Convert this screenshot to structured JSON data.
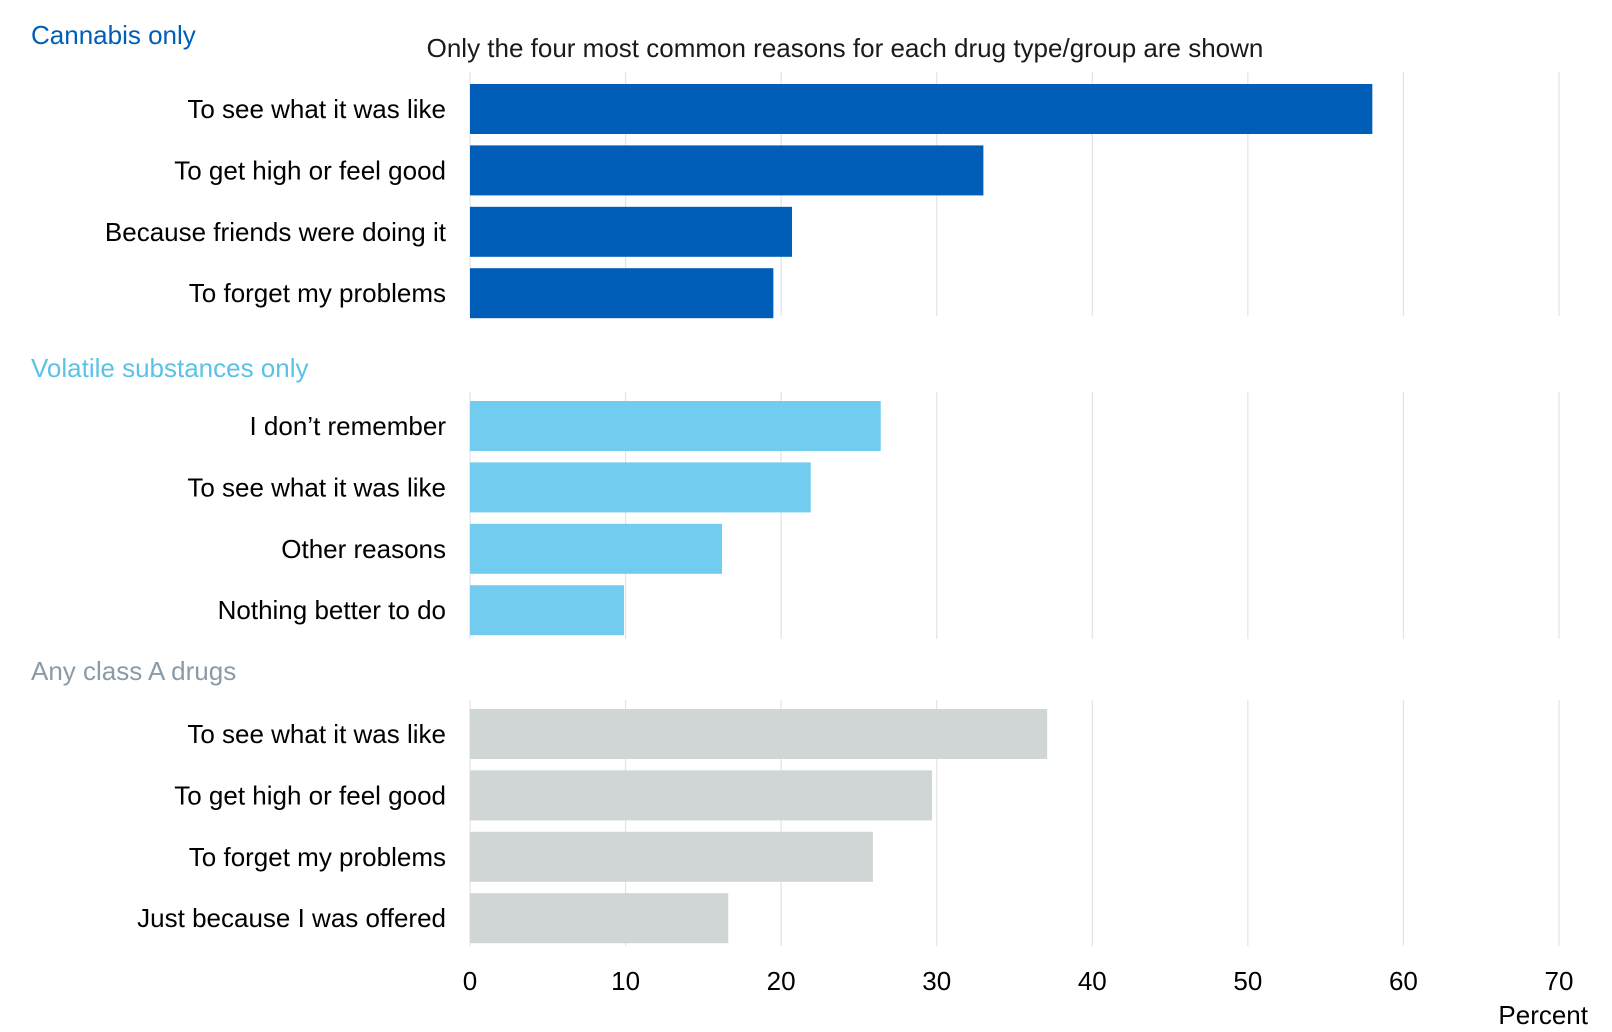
{
  "chart_data": {
    "type": "bar",
    "orientation": "horizontal",
    "note": "Only the four most common reasons for each drug type/group are shown",
    "xlabel": "Percent",
    "xlim": [
      0,
      70
    ],
    "xticks": [
      0,
      10,
      20,
      30,
      40,
      50,
      60,
      70
    ],
    "grid": true,
    "groups": [
      {
        "title": "Cannabis only",
        "color": "#005EB8",
        "title_color": "#005EB8",
        "categories": [
          "To see what it was like",
          "To get high or feel good",
          "Because friends were doing it",
          "To forget my problems"
        ],
        "values": [
          58,
          33,
          20.7,
          19.5
        ]
      },
      {
        "title": "Volatile substances only",
        "color": "#71CCEF",
        "title_color": "#5BC2E7",
        "categories": [
          "I don’t remember",
          "To see what it was like",
          "Other reasons",
          "Nothing better to do"
        ],
        "values": [
          26.4,
          21.9,
          16.2,
          9.9
        ]
      },
      {
        "title": "Any class A drugs",
        "color": "#D0D5D5",
        "title_color": "#8A9BA8",
        "categories": [
          "To see what it was like",
          "To get high or feel good",
          "To forget my problems",
          "Just because I was offered"
        ],
        "values": [
          37.1,
          29.7,
          25.9,
          16.6
        ]
      }
    ]
  }
}
